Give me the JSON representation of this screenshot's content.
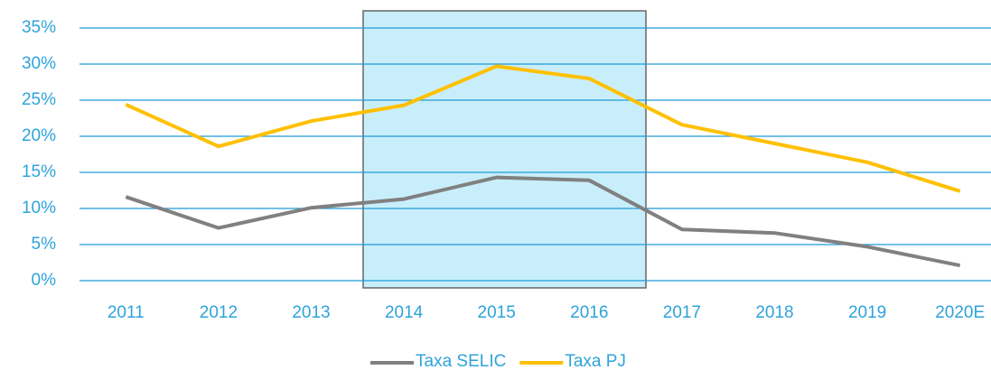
{
  "chart_data": {
    "type": "line",
    "categories": [
      "2011",
      "2012",
      "2013",
      "2014",
      "2015",
      "2016",
      "2017",
      "2018",
      "2019",
      "2020E"
    ],
    "series": [
      {
        "name": "Taxa SELIC",
        "color": "#808080",
        "values": [
          11.6,
          7.3,
          10.1,
          11.3,
          14.3,
          13.9,
          7.1,
          6.6,
          4.7,
          2.1
        ]
      },
      {
        "name": "Taxa PJ",
        "color": "#FFC000",
        "values": [
          24.4,
          18.6,
          22.1,
          24.3,
          29.7,
          28.0,
          21.6,
          19.0,
          16.4,
          12.4
        ]
      }
    ],
    "ylim": [
      0,
      35
    ],
    "yticks": [
      {
        "value": 0,
        "label": "0%"
      },
      {
        "value": 5,
        "label": "5%"
      },
      {
        "value": 10,
        "label": "10%"
      },
      {
        "value": 15,
        "label": "15%"
      },
      {
        "value": 20,
        "label": "20%"
      },
      {
        "value": 25,
        "label": "25%"
      },
      {
        "value": 30,
        "label": "30%"
      },
      {
        "value": 35,
        "label": "35%"
      }
    ],
    "grid": true,
    "legend": "bottom"
  }
}
